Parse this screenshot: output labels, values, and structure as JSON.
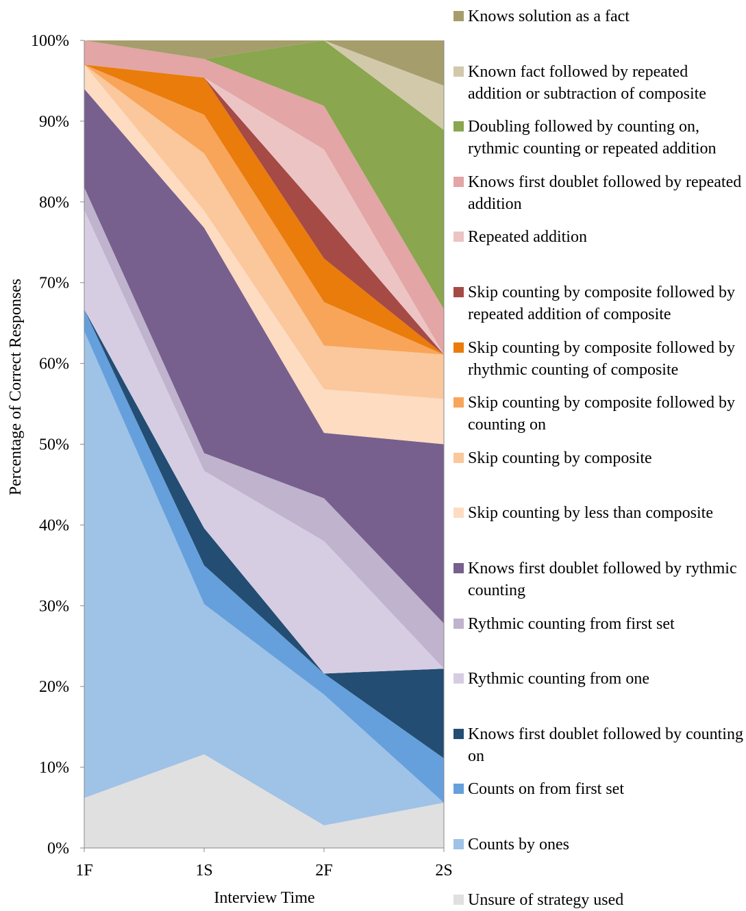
{
  "chart_data": {
    "type": "stacked_area",
    "categories": [
      "1F",
      "1S",
      "2F",
      "2S"
    ],
    "x_label": "Interview Time",
    "y_label": "Percentage of Correct Responses",
    "ylim": [
      0,
      100
    ],
    "yticks": [
      {
        "value": 0,
        "label": "0%"
      },
      {
        "value": 10,
        "label": "10%"
      },
      {
        "value": 20,
        "label": "20%"
      },
      {
        "value": 30,
        "label": "30%"
      },
      {
        "value": 40,
        "label": "40%"
      },
      {
        "value": 50,
        "label": "50%"
      },
      {
        "value": 60,
        "label": "60%"
      },
      {
        "value": 70,
        "label": "70%"
      },
      {
        "value": 80,
        "label": "80%"
      },
      {
        "value": 90,
        "label": "90%"
      },
      {
        "value": 100,
        "label": "100%"
      }
    ],
    "series": [
      {
        "name": "Unsure of strategy used",
        "color": "#e0e0e0",
        "values": [
          6.2,
          11.6,
          2.8,
          5.6
        ]
      },
      {
        "name": "Counts by ones",
        "color": "#9fc2e7",
        "values": [
          57.8,
          18.6,
          16.2,
          0
        ]
      },
      {
        "name": "Counts on from first set",
        "color": "#65a0dc",
        "values": [
          2.7,
          4.8,
          2.6,
          5.5
        ]
      },
      {
        "name": "Knows first doublet followed by counting on",
        "color": "#234d72",
        "values": [
          0,
          4.6,
          0,
          11.1
        ]
      },
      {
        "name": "Rythmic counting from one",
        "color": "#d6cde3",
        "values": [
          12.3,
          7.1,
          16.4,
          0
        ]
      },
      {
        "name": "Rythmic counting from first set",
        "color": "#c0b3cd",
        "values": [
          2.8,
          2.2,
          5.3,
          5.6
        ]
      },
      {
        "name": "Knows first doublet followed by rythmic counting",
        "color": "#77608d",
        "values": [
          12.2,
          27.9,
          8.1,
          22.2
        ]
      },
      {
        "name": "Skip counting by less than composite",
        "color": "#fddcc2",
        "values": [
          3,
          2.1,
          5.4,
          5.6
        ]
      },
      {
        "name": "Skip counting by composite",
        "color": "#fac89c",
        "values": [
          0,
          7.1,
          5.4,
          5.5
        ]
      },
      {
        "name": "Skip counting by composite followed by counting on",
        "color": "#f8a55a",
        "values": [
          0,
          4.8,
          5.4,
          0
        ]
      },
      {
        "name": "Skip counting by composite followed by rhythmic counting of composite",
        "color": "#e97c0b",
        "values": [
          0,
          4.6,
          5.4,
          0
        ]
      },
      {
        "name": "Skip counting by composite followed by repeated addition of composite",
        "color": "#a54a45",
        "values": [
          0,
          0,
          5.4,
          0
        ]
      },
      {
        "name": "Repeated addition",
        "color": "#ecc4c4",
        "values": [
          0,
          0,
          8.1,
          0
        ]
      },
      {
        "name": "Knows first doublet followed by repeated addition",
        "color": "#e3a5a5",
        "values": [
          3,
          2.3,
          5.4,
          5.6
        ]
      },
      {
        "name": "Doubling followed by counting on, rythmic counting or repeated addition",
        "color": "#8aa64e",
        "values": [
          0,
          0,
          8.1,
          22.2
        ]
      },
      {
        "name": "Known fact followed by repeated addition or subtraction of composite",
        "color": "#d2c9ab",
        "values": [
          0,
          0,
          0,
          5.5
        ]
      },
      {
        "name": "Knows solution as a fact",
        "color": "#a69d6c",
        "values": [
          0,
          2.3,
          0,
          5.6
        ]
      }
    ]
  }
}
